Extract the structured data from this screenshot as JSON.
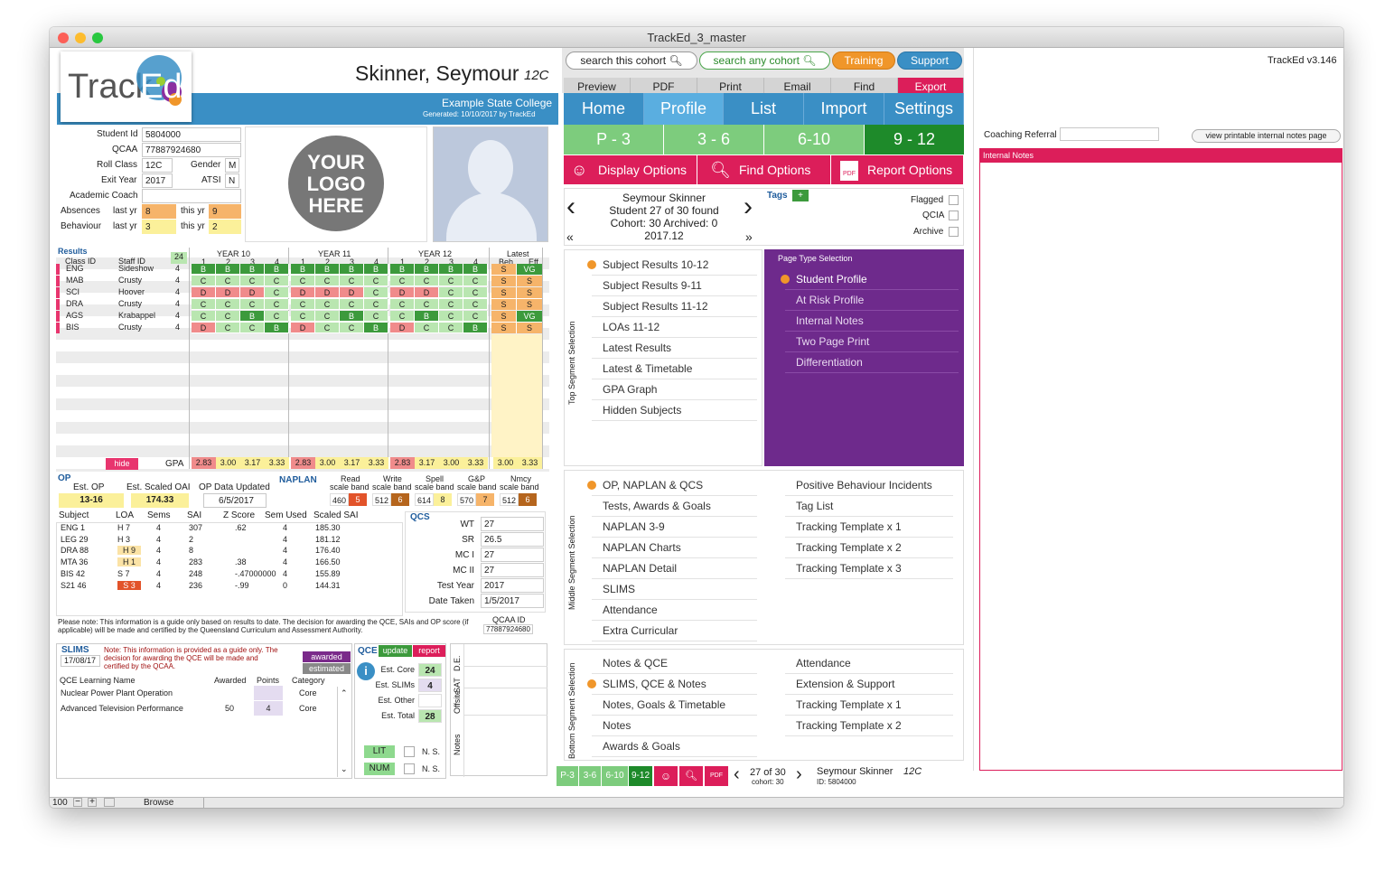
{
  "window": {
    "title": "TrackEd_3_master",
    "version": "TrackEd v3.146"
  },
  "header": {
    "logo_text": "Track",
    "logo_accent": "Ed",
    "student_name": "Skinner, Seymour",
    "student_class": "12C",
    "school": "Example State College",
    "generated": "Generated: 10/10/2017 by TrackEd"
  },
  "topbar": {
    "search_cohort": "search this cohort",
    "search_any": "search any cohort",
    "training": "Training",
    "support": "Support",
    "buttons": [
      "Preview",
      "PDF",
      "Print",
      "Email",
      "Find",
      "Export"
    ]
  },
  "nav": [
    "Home",
    "Profile",
    "List",
    "Import",
    "Settings"
  ],
  "segments": [
    "P - 3",
    "3 - 6",
    "6-10",
    "9 - 12"
  ],
  "options": {
    "display": "Display Options",
    "find": "Find Options",
    "report": "Report Options",
    "pdf_badge": "PDF"
  },
  "student_info": {
    "student_id_label": "Student Id",
    "student_id": "5804000",
    "qcaa_label": "QCAA",
    "qcaa": "77887924680",
    "roll_label": "Roll Class",
    "roll": "12C",
    "gender_label": "Gender",
    "gender": "M",
    "exit_label": "Exit Year",
    "exit": "2017",
    "atsi_label": "ATSI",
    "atsi": "N",
    "coach_label": "Academic Coach",
    "absences_label": "Absences",
    "behaviour_label": "Behaviour",
    "last_yr": "last yr",
    "this_yr": "this yr",
    "abs_last": "8",
    "abs_this": "9",
    "beh_last": "3",
    "beh_this": "2"
  },
  "logo_placeholder": [
    "YOUR",
    "LOGO",
    "HERE"
  ],
  "navigator": {
    "name": "Seymour Skinner",
    "found": "Student 27 of 30 found",
    "cohort": "Cohort: 30  Archived: 0",
    "year": "2017.12",
    "tags": "Tags",
    "add": "+",
    "flags": [
      "Flagged",
      "QCIA",
      "Archive"
    ]
  },
  "results": {
    "title": "Results",
    "class_id": "Class ID",
    "staff_id": "Staff ID",
    "count": "24",
    "years": [
      "YEAR 10",
      "YEAR 11",
      "YEAR 12"
    ],
    "latest": "Latest",
    "beh": "Beh",
    "eff": "Eff",
    "terms": [
      "1",
      "2",
      "3",
      "4"
    ],
    "rows": [
      {
        "cls": "ENG",
        "staff": "Sideshow",
        "n": "4",
        "g": [
          "B",
          "B",
          "B",
          "B",
          "B",
          "B",
          "B",
          "B",
          "B",
          "B",
          "B",
          "B"
        ],
        "beh": "S",
        "eff": "VG"
      },
      {
        "cls": "MAB",
        "staff": "Crusty",
        "n": "4",
        "g": [
          "C",
          "C",
          "C",
          "C",
          "C",
          "C",
          "C",
          "C",
          "C",
          "C",
          "C",
          "C"
        ],
        "beh": "S",
        "eff": "S"
      },
      {
        "cls": "SCI",
        "staff": "Hoover",
        "n": "4",
        "g": [
          "D",
          "D",
          "D",
          "C",
          "D",
          "D",
          "D",
          "C",
          "D",
          "D",
          "C",
          "C"
        ],
        "beh": "S",
        "eff": "S"
      },
      {
        "cls": "DRA",
        "staff": "Crusty",
        "n": "4",
        "g": [
          "C",
          "C",
          "C",
          "C",
          "C",
          "C",
          "C",
          "C",
          "C",
          "C",
          "C",
          "C"
        ],
        "beh": "S",
        "eff": "S"
      },
      {
        "cls": "AGS",
        "staff": "Krabappel",
        "n": "4",
        "g": [
          "C",
          "C",
          "B",
          "C",
          "C",
          "C",
          "B",
          "C",
          "C",
          "B",
          "C",
          "C"
        ],
        "beh": "S",
        "eff": "VG"
      },
      {
        "cls": "BIS",
        "staff": "Crusty",
        "n": "4",
        "g": [
          "D",
          "C",
          "C",
          "B",
          "D",
          "C",
          "C",
          "B",
          "D",
          "C",
          "C",
          "B"
        ],
        "beh": "S",
        "eff": "S"
      }
    ],
    "hide": "hide",
    "gpa_label": "GPA",
    "gpa": [
      "2.83",
      "3.00",
      "3.17",
      "3.33",
      "2.83",
      "3.00",
      "3.17",
      "3.33",
      "2.83",
      "3.17",
      "3.00",
      "3.33"
    ],
    "gpa_latest": [
      "3.00",
      "3.33"
    ]
  },
  "op": {
    "title": "OP",
    "est_op_label": "Est. OP",
    "est_op": "13-16",
    "oai_label": "Est. Scaled OAI",
    "oai": "174.33",
    "updated_label": "OP Data Updated",
    "updated": "6/5/2017",
    "cols": [
      "Subject",
      "LOA",
      "Sems",
      "SAI",
      "Z Score",
      "Sem Used",
      "Scaled SAI"
    ],
    "rows": [
      [
        "ENG  1",
        "H 7",
        "4",
        "307",
        ".62",
        "4",
        "185.30"
      ],
      [
        "LEG  29",
        "H 3",
        "4",
        "2",
        "",
        "4",
        "181.12"
      ],
      [
        "DRA  88",
        "H 9",
        "4",
        "8",
        "",
        "4",
        "176.40"
      ],
      [
        "MTA  36",
        "H 1",
        "4",
        "283",
        ".38",
        "4",
        "166.50"
      ],
      [
        "BIS  42",
        "S 7",
        "4",
        "248",
        "-.47000000",
        "4",
        "155.89"
      ],
      [
        "S21  46",
        "S 3",
        "4",
        "236",
        "-.99",
        "0",
        "144.31"
      ]
    ],
    "note": "Please note: This information is a guide only based on results to date. The decision for awarding the QCE, SAIs and OP score (if applicable) will be made and certified by the Queensland Curriculum and Assessment Authority.",
    "qcaa_id_label": "QCAA ID",
    "qcaa_id": "77887924680"
  },
  "naplan": {
    "title": "NAPLAN",
    "cols": [
      {
        "l1": "Read",
        "l2": "scale band",
        "s": "460",
        "b": "5"
      },
      {
        "l1": "Write",
        "l2": "scale band",
        "s": "512",
        "b": "6"
      },
      {
        "l1": "Spell",
        "l2": "scale band",
        "s": "614",
        "b": "8"
      },
      {
        "l1": "G&P",
        "l2": "scale band",
        "s": "570",
        "b": "7"
      },
      {
        "l1": "Nmcy",
        "l2": "scale band",
        "s": "512",
        "b": "6"
      }
    ]
  },
  "qcs": {
    "title": "QCS",
    "rows": [
      [
        "WT",
        "27"
      ],
      [
        "SR",
        "26.5"
      ],
      [
        "MC I",
        "27"
      ],
      [
        "MC II",
        "27"
      ],
      [
        "Test Year",
        "2017"
      ],
      [
        "Date Taken",
        "1/5/2017"
      ]
    ]
  },
  "slims": {
    "title": "SLIMS",
    "date": "17/08/17",
    "note": "Note: This information is provided as a guide only. The decision for awarding the QCE will be made and certified by the QCAA.",
    "awarded": "awarded",
    "estimated": "estimated",
    "cols": [
      "QCE Learning Name",
      "Awarded",
      "Points",
      "Category"
    ],
    "rows": [
      [
        "Nuclear Power Plant Operation",
        "",
        "",
        "Core"
      ],
      [
        "Advanced Television Performance",
        "50",
        "4",
        "Core"
      ]
    ]
  },
  "qce": {
    "title": "QCE",
    "update": "update",
    "report": "report",
    "rows": [
      [
        "Est. Core",
        "24"
      ],
      [
        "Est. SLIMs",
        "4"
      ],
      [
        "Est. Other",
        ""
      ],
      [
        "Est. Total",
        "28"
      ]
    ],
    "lit": "LIT",
    "num": "NUM",
    "ns": "N. S.",
    "side": [
      "D.E.",
      "SAT",
      "Offsite",
      "Notes"
    ]
  },
  "top_menu": {
    "label": "Top Segment Selection",
    "items": [
      "Subject Results 10-12",
      "Subject Results 9-11",
      "Subject Results 11-12",
      "LOAs 11-12",
      "Latest Results",
      "Latest & Timetable",
      "GPA Graph",
      "Hidden Subjects"
    ]
  },
  "page_type": {
    "label": "Page Type Selection",
    "items": [
      "Student Profile",
      "At Risk Profile",
      "Internal Notes",
      "Two Page Print",
      "Differentiation"
    ]
  },
  "mid_menu": {
    "label": "Middle Segment Selection",
    "left": [
      "OP, NAPLAN & QCS",
      "Tests, Awards & Goals",
      "NAPLAN 3-9",
      "NAPLAN Charts",
      "NAPLAN Detail",
      "SLIMS",
      "Attendance",
      "Extra Curricular"
    ],
    "right": [
      "Positive Behaviour Incidents",
      "Tag List",
      "Tracking Template x 1",
      "Tracking Template x 2",
      "Tracking Template x 3"
    ]
  },
  "bot_menu": {
    "label": "Bottom Segment Selection",
    "left": [
      "Notes & QCE",
      "SLIMS, QCE & Notes",
      "Notes, Goals & Timetable",
      "Notes",
      "Awards & Goals"
    ],
    "right": [
      "Attendance",
      "Extension & Support",
      "Tracking Template x 1",
      "Tracking Template x 2"
    ]
  },
  "footer_nav": {
    "segs": [
      "P-3",
      "3-6",
      "6-10",
      "9-12"
    ],
    "count": "27 of 30",
    "cohort": "cohort: 30",
    "name": "Seymour Skinner",
    "cls": "12C",
    "id": "ID: 5804000"
  },
  "right_panel": {
    "coaching": "Coaching Referral",
    "view_btn": "view printable internal notes page",
    "notes_title": "Internal Notes"
  },
  "status": {
    "zoom": "100",
    "mode": "Browse"
  }
}
